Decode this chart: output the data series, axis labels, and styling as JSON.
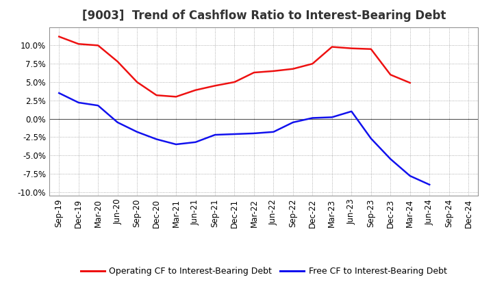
{
  "title": "[9003]  Trend of Cashflow Ratio to Interest-Bearing Debt",
  "x_labels": [
    "Sep-19",
    "Dec-19",
    "Mar-20",
    "Jun-20",
    "Sep-20",
    "Dec-20",
    "Mar-21",
    "Jun-21",
    "Sep-21",
    "Dec-21",
    "Mar-22",
    "Jun-22",
    "Sep-22",
    "Dec-22",
    "Mar-23",
    "Jun-23",
    "Sep-23",
    "Dec-23",
    "Mar-24",
    "Jun-24",
    "Sep-24",
    "Dec-24"
  ],
  "operating_cf": [
    11.2,
    10.2,
    10.0,
    7.8,
    5.0,
    3.2,
    3.0,
    3.9,
    4.5,
    5.0,
    6.3,
    6.5,
    6.8,
    7.5,
    9.8,
    9.6,
    9.5,
    6.0,
    4.9,
    null,
    null,
    null
  ],
  "free_cf": [
    3.5,
    2.2,
    1.8,
    -0.5,
    -1.8,
    -2.8,
    -3.5,
    -3.2,
    -2.2,
    -2.1,
    -2.0,
    -1.8,
    -0.5,
    0.1,
    0.2,
    1.0,
    -2.7,
    -5.5,
    -7.8,
    -9.0,
    null,
    null
  ],
  "operating_cf_color": "#ee1111",
  "free_cf_color": "#1111ee",
  "background_color": "#ffffff",
  "plot_bg_color": "#ffffff",
  "grid_color": "#999999",
  "ylim": [
    -10.5,
    12.5
  ],
  "yticks": [
    -10.0,
    -7.5,
    -5.0,
    -2.5,
    0.0,
    2.5,
    5.0,
    7.5,
    10.0
  ],
  "legend_operating": "Operating CF to Interest-Bearing Debt",
  "legend_free": "Free CF to Interest-Bearing Debt",
  "title_fontsize": 12,
  "axis_fontsize": 8.5,
  "legend_fontsize": 9,
  "line_width": 1.8
}
